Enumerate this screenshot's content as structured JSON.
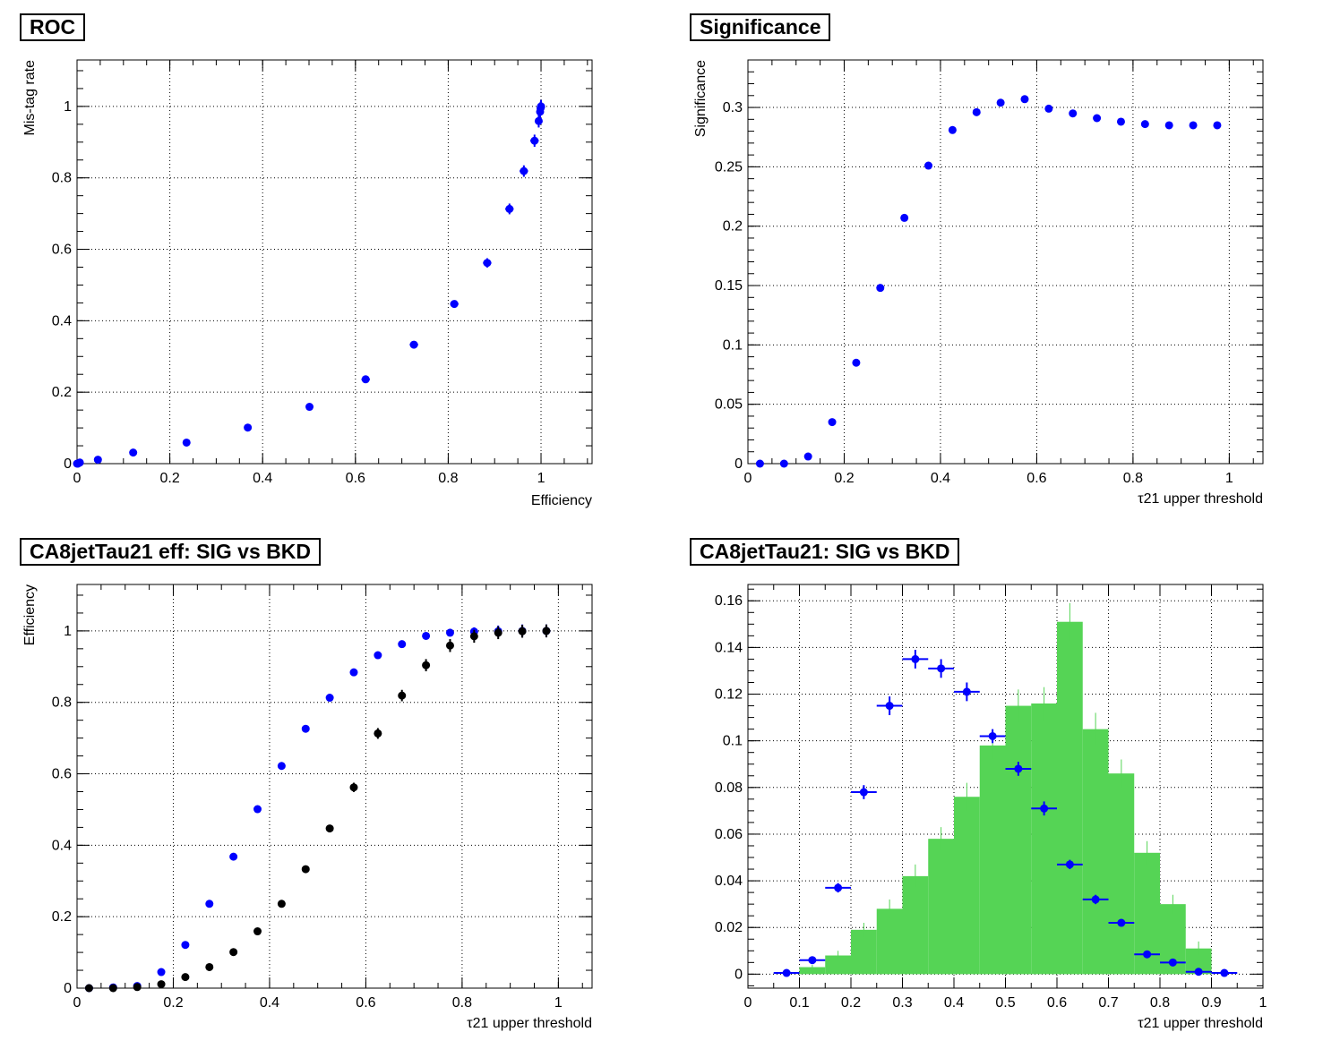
{
  "chart_data": [
    {
      "type": "scatter",
      "title": "ROC",
      "xlabel": "Efficiency",
      "ylabel": "Mis-tag rate",
      "xlim": [
        0,
        1.11
      ],
      "ylim": [
        0,
        1.13
      ],
      "xticks": [
        "0",
        "0.2",
        "0.4",
        "0.6",
        "0.8",
        "1"
      ],
      "yticks": [
        "0",
        "0.2",
        "0.4",
        "0.6",
        "0.8",
        "1"
      ],
      "grid": true,
      "colors": {
        "points": "#0000ff"
      },
      "series": [
        {
          "x": [
            0.0,
            0.002,
            0.006,
            0.045,
            0.121,
            0.236,
            0.368,
            0.501,
            0.622,
            0.726,
            0.813,
            0.884,
            0.932,
            0.963,
            0.986,
            0.995,
            0.998,
            0.999,
            1.0,
            1.0
          ],
          "y": [
            0.0,
            0.0,
            0.003,
            0.011,
            0.031,
            0.059,
            0.101,
            0.159,
            0.236,
            0.333,
            0.447,
            0.562,
            0.713,
            0.819,
            0.904,
            0.959,
            0.985,
            0.995,
            0.999,
            1.0
          ],
          "xerr": [
            0.0,
            0.0,
            0.0,
            0.003,
            0.004,
            0.004,
            0.004,
            0.004,
            0.009,
            0.009,
            0.009,
            0.009,
            0.009,
            0.009,
            0.009,
            0.006,
            0.006,
            0.006,
            0.006,
            0.006
          ],
          "yerr": [
            0.0,
            0.0,
            0.0,
            0.0,
            0.0,
            0.0,
            0.0,
            0.004,
            0.007,
            0.009,
            0.01,
            0.013,
            0.015,
            0.016,
            0.017,
            0.018,
            0.018,
            0.018,
            0.018,
            0.018
          ]
        }
      ]
    },
    {
      "type": "scatter",
      "title": "Significance",
      "xlabel": "τ21 upper threshold",
      "ylabel": "Significance",
      "xlim": [
        0,
        1.07
      ],
      "ylim": [
        0,
        0.34
      ],
      "xticks": [
        "0",
        "0.2",
        "0.4",
        "0.6",
        "0.8",
        "1"
      ],
      "yticks": [
        "0",
        "0.05",
        "0.1",
        "0.15",
        "0.2",
        "0.25",
        "0.3"
      ],
      "grid": true,
      "colors": {
        "points": "#0000ff"
      },
      "series": [
        {
          "x": [
            0.025,
            0.075,
            0.125,
            0.175,
            0.225,
            0.275,
            0.325,
            0.375,
            0.425,
            0.475,
            0.525,
            0.575,
            0.625,
            0.675,
            0.725,
            0.775,
            0.825,
            0.875,
            0.925,
            0.975
          ],
          "y": [
            0.0,
            0.0,
            0.006,
            0.035,
            0.085,
            0.148,
            0.207,
            0.251,
            0.281,
            0.296,
            0.304,
            0.307,
            0.299,
            0.295,
            0.291,
            0.288,
            0.286,
            0.285,
            0.285,
            0.285
          ],
          "yerr": [
            0.0,
            0.0,
            0.0,
            0.0,
            0.0,
            0.002,
            0.003,
            0.003,
            0.003,
            0.003,
            0.003,
            0.003,
            0.003,
            0.003,
            0.003,
            0.0,
            0.0,
            0.0,
            0.0,
            0.0
          ]
        }
      ]
    },
    {
      "type": "scatter",
      "title": "CA8jetTau21 eff: SIG vs BKD",
      "xlabel": "τ21 upper threshold",
      "ylabel": "Efficiency",
      "xlim": [
        0,
        1.07
      ],
      "ylim": [
        0,
        1.13
      ],
      "xticks": [
        "0",
        "0.2",
        "0.4",
        "0.6",
        "0.8",
        "1"
      ],
      "yticks": [
        "0",
        "0.2",
        "0.4",
        "0.6",
        "0.8",
        "1"
      ],
      "grid": true,
      "series": [
        {
          "color": "#0000ff",
          "x": [
            0.025,
            0.075,
            0.125,
            0.175,
            0.225,
            0.275,
            0.325,
            0.375,
            0.425,
            0.475,
            0.525,
            0.575,
            0.625,
            0.675,
            0.725,
            0.775,
            0.825,
            0.875,
            0.925,
            0.975
          ],
          "y": [
            0.0,
            0.002,
            0.006,
            0.045,
            0.121,
            0.236,
            0.368,
            0.501,
            0.622,
            0.726,
            0.813,
            0.884,
            0.932,
            0.963,
            0.986,
            0.995,
            0.998,
            0.999,
            1.0,
            1.0
          ],
          "yerr": [
            0.0,
            0.0,
            0.0,
            0.0,
            0.0,
            0.0,
            0.0,
            0.0,
            0.0,
            0.0,
            0.0,
            0.0,
            0.0,
            0.0,
            0.008,
            0.01,
            0.012,
            0.016,
            0.018,
            0.018
          ]
        },
        {
          "color": "#000000",
          "x": [
            0.025,
            0.075,
            0.125,
            0.175,
            0.225,
            0.275,
            0.325,
            0.375,
            0.425,
            0.475,
            0.525,
            0.575,
            0.625,
            0.675,
            0.725,
            0.775,
            0.825,
            0.875,
            0.925,
            0.975
          ],
          "y": [
            0.0,
            0.0,
            0.003,
            0.011,
            0.031,
            0.059,
            0.101,
            0.159,
            0.236,
            0.333,
            0.447,
            0.562,
            0.713,
            0.819,
            0.904,
            0.959,
            0.985,
            0.995,
            0.999,
            1.0
          ],
          "yerr": [
            0.0,
            0.0,
            0.0,
            0.0,
            0.0,
            0.0,
            0.0,
            0.004,
            0.007,
            0.009,
            0.01,
            0.013,
            0.015,
            0.016,
            0.017,
            0.018,
            0.018,
            0.018,
            0.018,
            0.018
          ]
        }
      ]
    },
    {
      "type": "bar",
      "title": "CA8jetTau21: SIG vs BKD",
      "xlabel": "τ21 upper threshold",
      "ylabel": "",
      "xlim": [
        0,
        1
      ],
      "ylim": [
        -0.006,
        0.167
      ],
      "xticks": [
        "0",
        "0.1",
        "0.2",
        "0.3",
        "0.4",
        "0.5",
        "0.6",
        "0.7",
        "0.8",
        "0.9",
        "1"
      ],
      "yticks": [
        "0",
        "0.02",
        "0.04",
        "0.06",
        "0.08",
        "0.1",
        "0.12",
        "0.14",
        "0.16"
      ],
      "grid": true,
      "histogram": {
        "color": "#55d455",
        "bin_low": [
          0.1,
          0.15,
          0.2,
          0.25,
          0.3,
          0.35,
          0.4,
          0.45,
          0.5,
          0.55,
          0.6,
          0.65,
          0.7,
          0.75,
          0.8,
          0.85
        ],
        "bin_high": [
          0.15,
          0.2,
          0.25,
          0.3,
          0.35,
          0.4,
          0.45,
          0.5,
          0.55,
          0.6,
          0.65,
          0.7,
          0.75,
          0.8,
          0.85,
          0.9
        ],
        "values": [
          0.003,
          0.008,
          0.019,
          0.028,
          0.042,
          0.058,
          0.076,
          0.098,
          0.115,
          0.116,
          0.151,
          0.105,
          0.086,
          0.052,
          0.03,
          0.011
        ],
        "errors": [
          0.001,
          0.002,
          0.003,
          0.004,
          0.005,
          0.005,
          0.006,
          0.006,
          0.007,
          0.007,
          0.008,
          0.007,
          0.006,
          0.005,
          0.004,
          0.003
        ]
      },
      "points": {
        "color": "#0000ff",
        "x": [
          0.075,
          0.125,
          0.175,
          0.225,
          0.275,
          0.325,
          0.375,
          0.425,
          0.475,
          0.525,
          0.575,
          0.625,
          0.675,
          0.725,
          0.775,
          0.825,
          0.875,
          0.925
        ],
        "y": [
          0.0005,
          0.006,
          0.037,
          0.078,
          0.115,
          0.135,
          0.131,
          0.121,
          0.102,
          0.088,
          0.071,
          0.047,
          0.032,
          0.022,
          0.0085,
          0.005,
          0.001,
          0.0005
        ],
        "yerr": [
          0.0005,
          0.001,
          0.002,
          0.003,
          0.004,
          0.004,
          0.004,
          0.004,
          0.003,
          0.003,
          0.003,
          0.002,
          0.002,
          0.001,
          0.001,
          0.001,
          0.0005,
          0.0005
        ]
      }
    }
  ]
}
